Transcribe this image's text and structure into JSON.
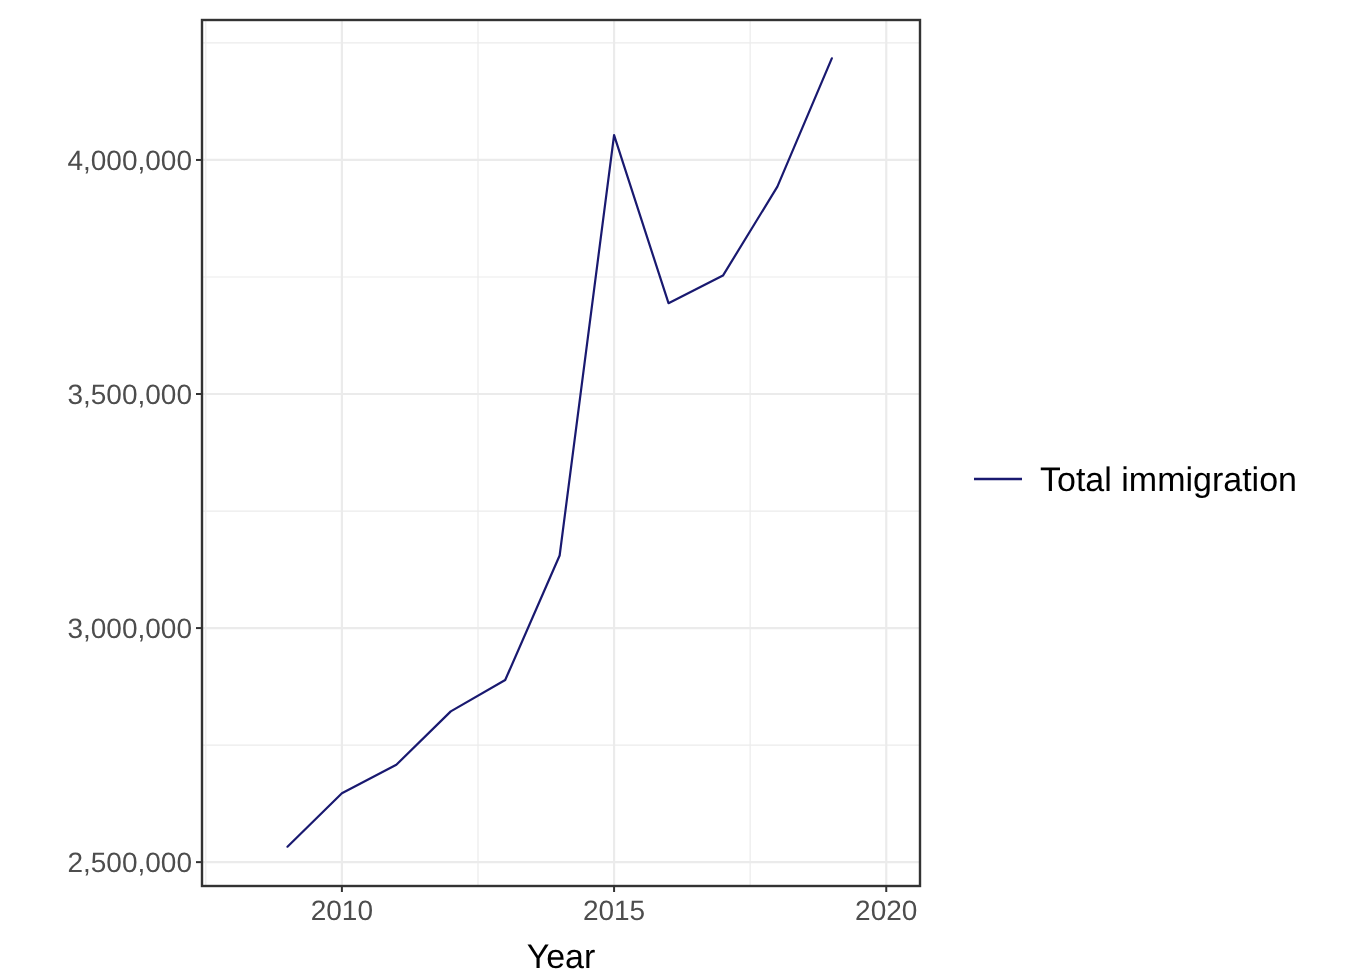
{
  "chart_data": {
    "type": "line",
    "xlabel": "Year",
    "x": [
      2009,
      2010,
      2011,
      2012,
      2013,
      2014,
      2015,
      2016,
      2017,
      2018,
      2019
    ],
    "series": [
      {
        "name": "Total immigration",
        "color": "#191970",
        "values": [
          2533000,
          2647000,
          2708000,
          2822000,
          2889000,
          3155000,
          4053000,
          3694000,
          3753000,
          3943000,
          4217000
        ]
      }
    ],
    "xlim": [
      2007.43,
      2020.62
    ],
    "xticks": [
      {
        "value": 2007.5,
        "label": null
      },
      2010,
      {
        "value": 2012.5,
        "label": null
      },
      2015,
      {
        "value": 2017.5,
        "label": null
      },
      2020
    ],
    "ylim": [
      2449000,
      4299000
    ],
    "yticks": [
      {
        "value": 2500000,
        "label": "2,500,000"
      },
      {
        "value": 2750000,
        "label": null
      },
      {
        "value": 3000000,
        "label": "3,000,000"
      },
      {
        "value": 3250000,
        "label": null
      },
      {
        "value": 3500000,
        "label": "3,500,000"
      },
      {
        "value": 3750000,
        "label": null
      },
      {
        "value": 4000000,
        "label": "4,000,000"
      },
      {
        "value": 4250000,
        "label": null
      }
    ],
    "grid": true,
    "legend": "right",
    "marker": "none",
    "line_style": "solid"
  }
}
